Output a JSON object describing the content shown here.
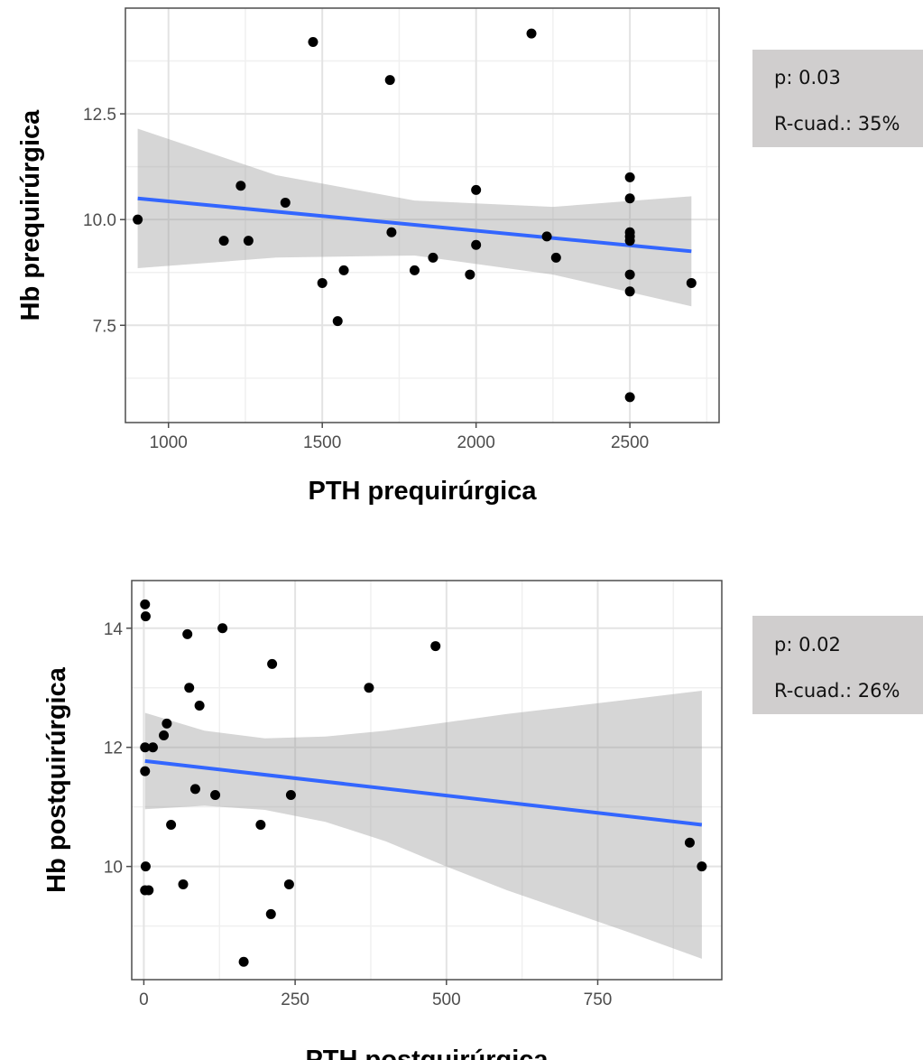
{
  "chart_data": [
    {
      "type": "scatter",
      "xlabel": "PTH prequirúrgica",
      "ylabel": "Hb prequirúrgica",
      "xlim": [
        860,
        2790
      ],
      "ylim": [
        5.2,
        15.0
      ],
      "x_ticks": [
        1000,
        1500,
        2000,
        2500
      ],
      "x_tick_labels": [
        "1000",
        "1500",
        "2000",
        "2500"
      ],
      "y_ticks": [
        7.5,
        10.0,
        12.5
      ],
      "y_tick_labels": [
        "7.5",
        "10.0",
        "12.5"
      ],
      "grid": true,
      "points": [
        {
          "x": 900,
          "y": 10.0
        },
        {
          "x": 1180,
          "y": 9.5
        },
        {
          "x": 1235,
          "y": 10.8
        },
        {
          "x": 1260,
          "y": 9.5
        },
        {
          "x": 1380,
          "y": 10.4
        },
        {
          "x": 1470,
          "y": 14.2
        },
        {
          "x": 1500,
          "y": 8.5
        },
        {
          "x": 1550,
          "y": 7.6
        },
        {
          "x": 1570,
          "y": 8.8
        },
        {
          "x": 1720,
          "y": 13.3
        },
        {
          "x": 1725,
          "y": 9.7
        },
        {
          "x": 1800,
          "y": 8.8
        },
        {
          "x": 1860,
          "y": 9.1
        },
        {
          "x": 1980,
          "y": 8.7
        },
        {
          "x": 2000,
          "y": 9.4
        },
        {
          "x": 2000,
          "y": 10.7
        },
        {
          "x": 2180,
          "y": 14.4
        },
        {
          "x": 2230,
          "y": 9.6
        },
        {
          "x": 2260,
          "y": 9.1
        },
        {
          "x": 2500,
          "y": 11.0
        },
        {
          "x": 2500,
          "y": 10.5
        },
        {
          "x": 2500,
          "y": 9.7
        },
        {
          "x": 2500,
          "y": 9.6
        },
        {
          "x": 2500,
          "y": 9.5
        },
        {
          "x": 2500,
          "y": 8.7
        },
        {
          "x": 2500,
          "y": 8.3
        },
        {
          "x": 2500,
          "y": 5.8
        },
        {
          "x": 2700,
          "y": 8.5
        }
      ],
      "fit_line": {
        "x": [
          900,
          2700
        ],
        "y": [
          10.5,
          9.25
        ],
        "color": "#3366ff"
      },
      "confidence_band": {
        "x": [
          900,
          1350,
          1800,
          2250,
          2700
        ],
        "upper": [
          12.15,
          11.05,
          10.45,
          10.3,
          10.55
        ],
        "lower": [
          8.85,
          9.1,
          9.15,
          8.7,
          7.95
        ],
        "color": "#999999"
      },
      "stats": {
        "p": "p: 0.03",
        "r2": "R-cuad.: 35%"
      }
    },
    {
      "type": "scatter",
      "xlabel": "PTH postquirúrgica",
      "ylabel": "Hb postquirúrgica",
      "xlim": [
        -20,
        955
      ],
      "ylim": [
        8.1,
        14.8
      ],
      "x_ticks": [
        0,
        250,
        500,
        750
      ],
      "x_tick_labels": [
        "0",
        "250",
        "500",
        "750"
      ],
      "y_ticks": [
        10,
        12,
        14
      ],
      "y_tick_labels": [
        "10",
        "12",
        "14"
      ],
      "grid": true,
      "points": [
        {
          "x": 2,
          "y": 14.4
        },
        {
          "x": 3,
          "y": 14.2
        },
        {
          "x": 2,
          "y": 12.0
        },
        {
          "x": 2,
          "y": 11.6
        },
        {
          "x": 3,
          "y": 10.0
        },
        {
          "x": 2,
          "y": 9.6
        },
        {
          "x": 8,
          "y": 9.6
        },
        {
          "x": 15,
          "y": 12.0
        },
        {
          "x": 33,
          "y": 12.2
        },
        {
          "x": 38,
          "y": 12.4
        },
        {
          "x": 45,
          "y": 10.7
        },
        {
          "x": 65,
          "y": 9.7
        },
        {
          "x": 72,
          "y": 13.9
        },
        {
          "x": 75,
          "y": 13.0
        },
        {
          "x": 85,
          "y": 11.3
        },
        {
          "x": 92,
          "y": 12.7
        },
        {
          "x": 118,
          "y": 11.2
        },
        {
          "x": 130,
          "y": 14.0
        },
        {
          "x": 165,
          "y": 8.4
        },
        {
          "x": 193,
          "y": 10.7
        },
        {
          "x": 210,
          "y": 9.2
        },
        {
          "x": 212,
          "y": 13.4
        },
        {
          "x": 240,
          "y": 9.7
        },
        {
          "x": 243,
          "y": 11.2
        },
        {
          "x": 372,
          "y": 13.0
        },
        {
          "x": 482,
          "y": 13.7
        },
        {
          "x": 902,
          "y": 10.4
        },
        {
          "x": 922,
          "y": 10.0
        }
      ],
      "fit_line": {
        "x": [
          2,
          922
        ],
        "y": [
          11.77,
          10.7
        ],
        "color": "#3366ff"
      },
      "confidence_band": {
        "x": [
          2,
          100,
          200,
          300,
          400,
          500,
          600,
          700,
          800,
          922
        ],
        "upper": [
          12.58,
          12.28,
          12.15,
          12.18,
          12.28,
          12.42,
          12.56,
          12.68,
          12.8,
          12.95
        ],
        "lower": [
          10.96,
          11.02,
          10.95,
          10.75,
          10.42,
          10.0,
          9.6,
          9.25,
          8.9,
          8.45
        ],
        "color": "#999999"
      },
      "stats": {
        "p": "p: 0.02",
        "r2": "R-cuad.: 26%"
      }
    }
  ]
}
